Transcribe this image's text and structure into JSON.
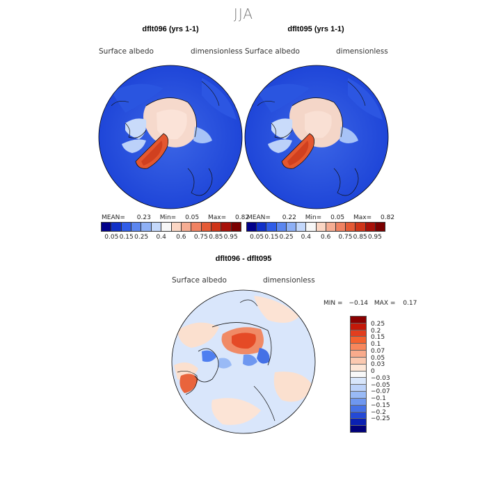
{
  "figure": {
    "season": "JJA",
    "panels": [
      {
        "title": "dflt096 (yrs 1-1)",
        "variable": "Surface albedo",
        "units": "dimensionless",
        "stats": {
          "mean_label": "MEAN=",
          "mean": "0.23",
          "min_label": "Min=",
          "min": "0.05",
          "max_label": "Max=",
          "max": "0.82"
        }
      },
      {
        "title": "dflt095 (yrs 1-1)",
        "variable": "Surface albedo",
        "units": "dimensionless",
        "stats": {
          "mean_label": "MEAN=",
          "mean": "0.22",
          "min_label": "Min=",
          "min": "0.05",
          "max_label": "Max=",
          "max": "0.82"
        }
      }
    ],
    "colorbar_albedo": {
      "ticks": [
        "0.05",
        "0.15",
        "0.25",
        "0.4",
        "0.6",
        "0.75",
        "0.85",
        "0.95"
      ],
      "colors": [
        "#00008a",
        "#1030c8",
        "#2f5ce8",
        "#5b86f0",
        "#8eb0f6",
        "#c4d8fb",
        "#f7f7f7",
        "#fbd6c4",
        "#f6ad93",
        "#f08262",
        "#e55a35",
        "#cf3418",
        "#a81008",
        "#7a0000"
      ]
    },
    "diff_panel": {
      "title": "dflt096 - dflt095",
      "variable": "Surface albedo",
      "units": "dimensionless",
      "stats": {
        "min_label": "MIN =",
        "min": "−0.14",
        "max_label": "MAX =",
        "max": "0.17"
      }
    },
    "colorbar_diff": {
      "ticks": [
        "0.25",
        "0.2",
        "0.15",
        "0.1",
        "0.07",
        "0.05",
        "0.03",
        "0",
        "−0.03",
        "−0.05",
        "−0.07",
        "−0.1",
        "−0.15",
        "−0.2",
        "−0.25"
      ],
      "colors": [
        "#8a0000",
        "#c41808",
        "#e23e1e",
        "#f4622f",
        "#f7875c",
        "#f9ab8c",
        "#fbc9b0",
        "#fde6d6",
        "#f8f8f8",
        "#d8e6fb",
        "#bcd2f9",
        "#99baf6",
        "#6e97f0",
        "#4571e6",
        "#2449d6",
        "#0a20b2",
        "#00007a"
      ]
    }
  }
}
